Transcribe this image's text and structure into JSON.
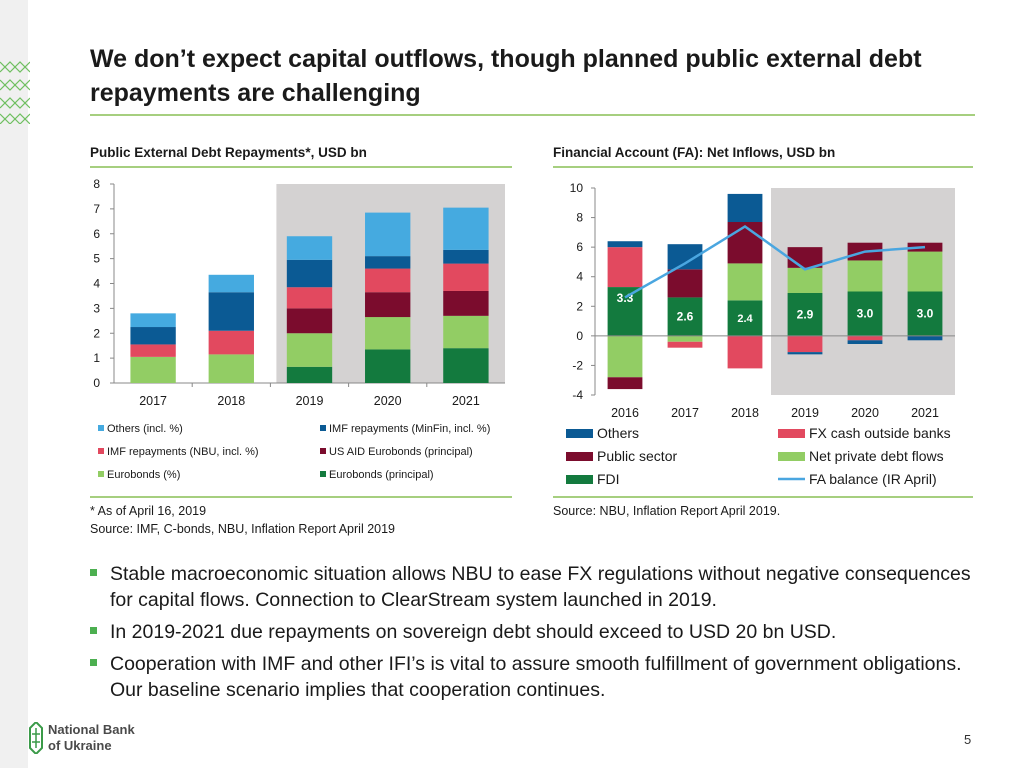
{
  "slide": {
    "title": "We don’t expect capital outflows, though planned public external debt repayments are challenging",
    "page_number": "5",
    "logo_text_line1": "National Bank",
    "logo_text_line2": "of Ukraine"
  },
  "colors": {
    "accent_green": "#a6cf7f",
    "others_incl": "#45aae0",
    "imf_minfin": "#0b5a94",
    "imf_nbu": "#e2495f",
    "us_aid": "#7b0c2d",
    "eurobonds_pct": "#92cd64",
    "eurobonds_principal": "#137a3e",
    "fa_others": "#0b5a94",
    "fx_cash": "#e2495f",
    "public_sector": "#7b0c2d",
    "net_private": "#92cd64",
    "fdi": "#137a3e",
    "fa_balance": "#4aa6e0",
    "forecast_shade": "#d4d2d2"
  },
  "left_chart": {
    "heading": "Public External Debt Repayments*, USD bn",
    "note_line1": "* As of April 16, 2019",
    "note_line2": "Source: IMF,  C-bonds, NBU, Inflation Report April 2019"
  },
  "right_chart": {
    "heading": "Financial Account (FA): Net Inflows, USD bn",
    "note_line1": "Source: NBU, Inflation Report April 2019."
  },
  "chart_data": [
    {
      "type": "bar",
      "stacked": true,
      "title": "Public External Debt Repayments*, USD bn",
      "categories": [
        "2017",
        "2018",
        "2019",
        "2020",
        "2021"
      ],
      "ylim": [
        0,
        8
      ],
      "yticks": [
        "0",
        "1",
        "2",
        "3",
        "4",
        "5",
        "6",
        "7",
        "8"
      ],
      "forecast_shading_from": "2019",
      "legend_position": "bottom",
      "series": [
        {
          "name": "Eurobonds (principal)",
          "color_key": "eurobonds_principal",
          "values": [
            0,
            0,
            0.65,
            1.35,
            1.4
          ]
        },
        {
          "name": "Eurobonds (%)",
          "color_key": "eurobonds_pct",
          "values": [
            1.05,
            1.15,
            1.35,
            1.3,
            1.3
          ]
        },
        {
          "name": "US AID Eurobonds (principal)",
          "color_key": "us_aid",
          "values": [
            0,
            0,
            1.0,
            1.0,
            1.0
          ]
        },
        {
          "name": "IMF repayments (NBU, incl. %)",
          "color_key": "imf_nbu",
          "values": [
            0.5,
            0.95,
            0.85,
            0.95,
            1.1
          ]
        },
        {
          "name": "IMF repayments (MinFin, incl. %)",
          "color_key": "imf_minfin",
          "values": [
            0.7,
            1.55,
            1.1,
            0.5,
            0.55
          ]
        },
        {
          "name": "Others (incl. %)",
          "color_key": "others_incl",
          "values": [
            0.55,
            0.7,
            0.95,
            1.75,
            1.7
          ]
        }
      ]
    },
    {
      "type": "bar",
      "stacked": true,
      "title": "Financial Account (FA): Net Inflows, USD bn",
      "categories": [
        "2016",
        "2017",
        "2018",
        "2019",
        "2020",
        "2021"
      ],
      "ylim": [
        -4,
        10
      ],
      "yticks": [
        "-4",
        "-2",
        "0",
        "2",
        "4",
        "6",
        "8",
        "10"
      ],
      "forecast_shading_from": "2019",
      "legend_position": "bottom",
      "series": [
        {
          "name": "FDI",
          "color_key": "fdi",
          "values": [
            3.3,
            2.6,
            2.4,
            2.9,
            3.0,
            3.0
          ],
          "labels": [
            "3.3",
            "2.6",
            "2.4",
            "2.9",
            "3.0",
            "3.0"
          ]
        },
        {
          "name": "Net private debt flows",
          "color_key": "net_private",
          "values": [
            -2.8,
            -0.4,
            2.5,
            1.7,
            2.1,
            2.7
          ]
        },
        {
          "name": "Public sector",
          "color_key": "public_sector",
          "values": [
            -0.8,
            1.9,
            2.8,
            1.4,
            1.2,
            0.6
          ]
        },
        {
          "name": "FX cash outside banks",
          "color_key": "fx_cash",
          "values": [
            2.7,
            -0.4,
            -2.2,
            -1.1,
            -0.3,
            0
          ]
        },
        {
          "name": "Others",
          "color_key": "fa_others",
          "values": [
            0.4,
            1.7,
            1.9,
            -0.15,
            -0.25,
            -0.3
          ]
        }
      ],
      "line_series": {
        "name": "FA balance (IR April)",
        "color_key": "fa_balance",
        "values": [
          2.6,
          4.9,
          7.4,
          4.5,
          5.7,
          6.0
        ]
      }
    }
  ]
}
